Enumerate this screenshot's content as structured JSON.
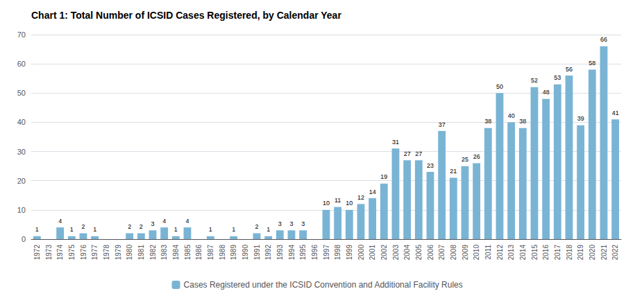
{
  "chart_data": {
    "type": "bar",
    "title": "Chart 1: Total Number of ICSID Cases Registered, by Calendar Year",
    "categories": [
      "1972",
      "1973",
      "1974",
      "1975",
      "1976",
      "1977",
      "1978",
      "1979",
      "1980",
      "1981",
      "1982",
      "1983",
      "1984",
      "1985",
      "1986",
      "1987",
      "1988",
      "1989",
      "1990",
      "1991",
      "1992",
      "1993",
      "1994",
      "1995",
      "1996",
      "1997",
      "1998",
      "1999",
      "2000",
      "2001",
      "2002",
      "2003",
      "2004",
      "2005",
      "2006",
      "2007",
      "2008",
      "2009",
      "2010",
      "2011",
      "2012",
      "2013",
      "2014",
      "2015",
      "2016",
      "2017",
      "2018",
      "2019",
      "2020",
      "2021",
      "2022"
    ],
    "series": [
      {
        "name": "Cases Registered under the ICSID Convention and Additional Facility Rules",
        "color": "#7ab4d4",
        "values": [
          1,
          0,
          4,
          1,
          2,
          1,
          0,
          0,
          2,
          2,
          3,
          4,
          1,
          4,
          0,
          1,
          0,
          1,
          0,
          2,
          1,
          3,
          3,
          3,
          0,
          10,
          11,
          10,
          12,
          14,
          19,
          31,
          27,
          27,
          23,
          37,
          21,
          25,
          26,
          38,
          50,
          40,
          38,
          52,
          48,
          53,
          56,
          39,
          58,
          66,
          41
        ],
        "value_labels": [
          "1",
          null,
          "4",
          "1",
          "2",
          "1",
          null,
          null,
          "2",
          "2",
          "3",
          "4",
          "1",
          "4",
          null,
          "1",
          null,
          "1",
          null,
          "2",
          "1",
          "3",
          "3",
          "3",
          null,
          "10",
          "11",
          "10",
          "12",
          "14",
          "19",
          "31",
          "27",
          "27",
          "23",
          "37",
          "21",
          "25",
          "26",
          "38",
          "50",
          "40",
          "38",
          "52",
          "48",
          "53",
          "56",
          "39",
          "58",
          "66",
          "41"
        ]
      }
    ],
    "ylim": [
      0,
      70
    ],
    "yticks": [
      0,
      10,
      20,
      30,
      40,
      50,
      60,
      70
    ],
    "grid": true,
    "legend": "bottom",
    "data_labels": true
  }
}
